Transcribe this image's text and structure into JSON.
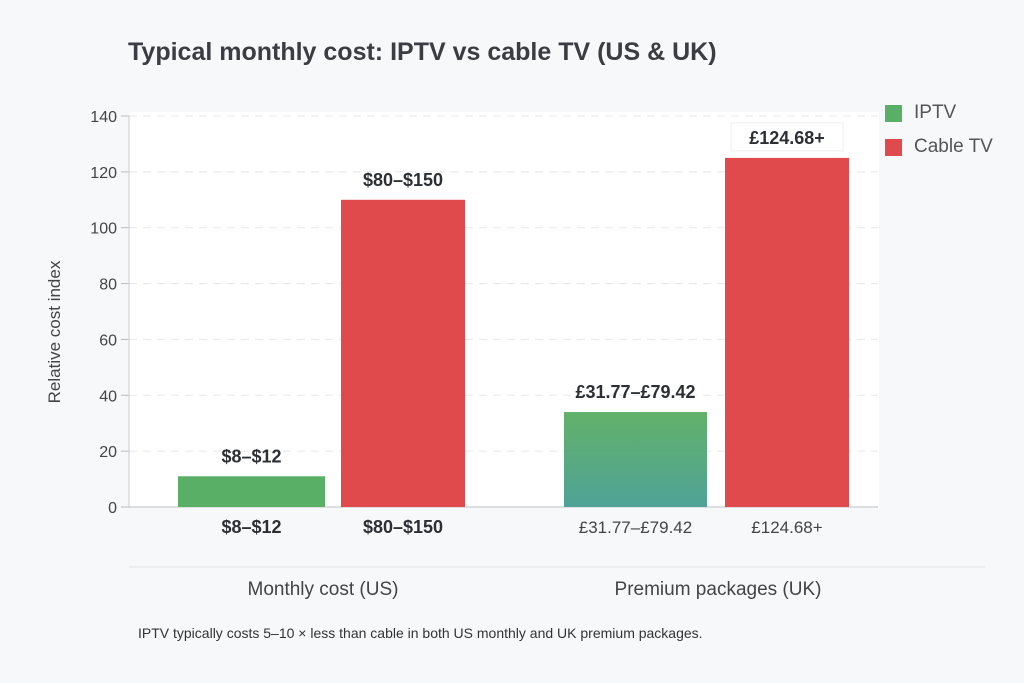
{
  "chart_data": {
    "type": "bar",
    "title": "Typical monthly cost: IPTV vs cable TV (US & UK)",
    "xlabel": "",
    "ylabel": "Relative cost index",
    "ylim": [
      0,
      140
    ],
    "yticks": [
      0,
      20,
      40,
      60,
      80,
      100,
      120,
      140
    ],
    "grid": true,
    "legend_position": "top-right",
    "categories": [
      "Monthly cost (US)",
      "Premium packages (UK)"
    ],
    "series": [
      {
        "name": "IPTV",
        "color": "#5aaf66",
        "values": [
          11,
          34
        ],
        "labels": [
          "$8–$12",
          "£31.77–£79.42"
        ]
      },
      {
        "name": "Cable TV",
        "color": "#e04a4d",
        "values": [
          110,
          125
        ],
        "labels": [
          "$80–$150",
          "£124.68+"
        ]
      }
    ],
    "footnote": "IPTV typically costs  5–10 × less than cable in both US monthly and UK premium packages."
  }
}
